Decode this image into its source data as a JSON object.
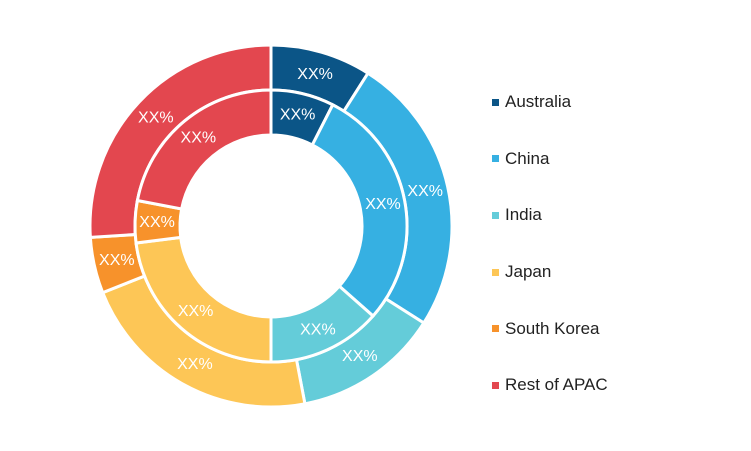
{
  "chart_data": {
    "type": "pie",
    "title": "",
    "style": "double-donut",
    "legend_position": "right",
    "categories": [
      "Australia",
      "China",
      "India",
      "Japan",
      "South Korea",
      "Rest of APAC"
    ],
    "colors": [
      "#0b5587",
      "#36b0e2",
      "#64ccd9",
      "#fdc656",
      "#f7922b",
      "#e3474f"
    ],
    "series": [
      {
        "values": [
          9,
          25,
          13,
          22,
          5,
          26
        ],
        "labels": [
          "XX%",
          "XX%",
          "XX%",
          "XX%",
          "XX%",
          "XX%"
        ]
      },
      {
        "values": [
          7.5,
          29,
          13.5,
          23,
          5,
          22
        ],
        "labels": [
          "XX%",
          "XX%",
          "XX%",
          "XX%",
          "XX%",
          "XX%"
        ]
      }
    ]
  }
}
